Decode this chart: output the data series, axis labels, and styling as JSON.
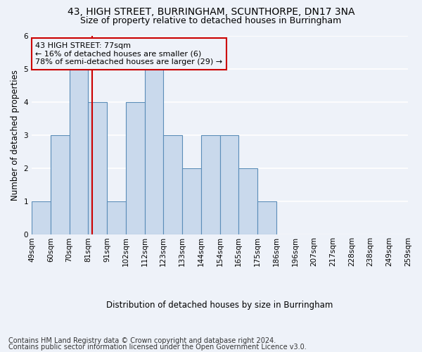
{
  "title1": "43, HIGH STREET, BURRINGHAM, SCUNTHORPE, DN17 3NA",
  "title2": "Size of property relative to detached houses in Burringham",
  "xlabel": "Distribution of detached houses by size in Burringham",
  "ylabel": "Number of detached properties",
  "footnote1": "Contains HM Land Registry data © Crown copyright and database right 2024.",
  "footnote2": "Contains public sector information licensed under the Open Government Licence v3.0.",
  "bin_labels": [
    "49sqm",
    "60sqm",
    "70sqm",
    "81sqm",
    "91sqm",
    "102sqm",
    "112sqm",
    "123sqm",
    "133sqm",
    "144sqm",
    "154sqm",
    "165sqm",
    "175sqm",
    "186sqm",
    "196sqm",
    "207sqm",
    "217sqm",
    "228sqm",
    "238sqm",
    "249sqm",
    "259sqm"
  ],
  "bar_values": [
    1,
    3,
    5,
    4,
    1,
    4,
    5,
    3,
    2,
    3,
    3,
    2,
    1,
    0,
    0,
    0,
    0,
    0,
    0,
    0
  ],
  "bar_color": "#c9d9ec",
  "bar_edge_color": "#5b8db8",
  "bar_edge_width": 0.8,
  "vline_x": 2.7,
  "vline_color": "#cc0000",
  "annotation_text": "43 HIGH STREET: 77sqm\n← 16% of detached houses are smaller (6)\n78% of semi-detached houses are larger (29) →",
  "annotation_box_edge_color": "#cc0000",
  "ylim": [
    0,
    6
  ],
  "yticks": [
    0,
    1,
    2,
    3,
    4,
    5,
    6
  ],
  "background_color": "#eef2f9",
  "grid_color": "#ffffff",
  "title_fontsize": 10,
  "subtitle_fontsize": 9,
  "axis_label_fontsize": 8.5,
  "tick_fontsize": 7.5,
  "footnote_fontsize": 7
}
